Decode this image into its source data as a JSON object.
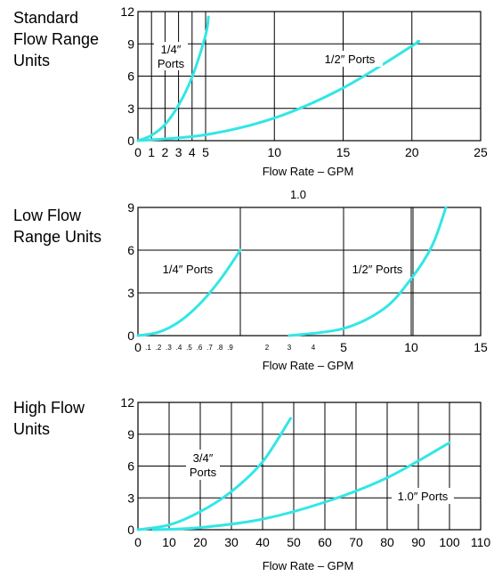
{
  "chart_data": [
    {
      "type": "line",
      "title": "Standard Flow Range Units",
      "title_lines": [
        "Standard",
        "Flow Range",
        "Units"
      ],
      "xlabel": "Flow Rate – GPM",
      "ylabel": "",
      "xlim": [
        0,
        25
      ],
      "ylim": [
        0,
        12
      ],
      "x_ticks": [
        0,
        1,
        2,
        3,
        4,
        5,
        10,
        15,
        20,
        25
      ],
      "y_ticks": [
        0,
        3,
        6,
        9,
        12
      ],
      "series": [
        {
          "name": "1/4″ Ports",
          "label_lines": [
            "1/4″",
            "Ports"
          ],
          "x": [
            0,
            1,
            2,
            3,
            4,
            5,
            5.2
          ],
          "y": [
            0,
            0.5,
            1.5,
            3.3,
            5.9,
            9.8,
            11.5
          ]
        },
        {
          "name": "1/2″ Ports",
          "label_lines": [
            "1/2″ Ports"
          ],
          "x": [
            0,
            5,
            10,
            15,
            20,
            20.4
          ],
          "y": [
            0,
            0.55,
            2.1,
            4.9,
            8.8,
            9.2
          ]
        }
      ],
      "grid": true
    },
    {
      "type": "line",
      "title": "Low Flow Range Units",
      "title_lines": [
        "Low Flow",
        "Range Units"
      ],
      "top_label": "1.0",
      "xlabel": "Flow Rate – GPM",
      "ylabel": "",
      "ylim": [
        0,
        9
      ],
      "y_ticks": [
        0,
        3,
        6,
        9
      ],
      "x_ticks_small": [
        ".1",
        ".2",
        ".3",
        ".4",
        ".5",
        ".6",
        ".7",
        ".8",
        ".9",
        "2",
        "3",
        "4"
      ],
      "x_ticks_large": [
        "0",
        "5",
        "10",
        "15"
      ],
      "series": [
        {
          "name": "1/4″ Ports",
          "label_lines": [
            "1/4″ Ports"
          ],
          "x": [
            0,
            0.2,
            0.4,
            0.6,
            0.8,
            1.0
          ],
          "y": [
            0,
            0.24,
            0.96,
            2.2,
            3.9,
            6.0
          ]
        },
        {
          "name": "1/2″ Ports",
          "label_lines": [
            "1/2″ Ports"
          ],
          "x": [
            3,
            5,
            8,
            10,
            11.5,
            12.5
          ],
          "y": [
            0,
            0.5,
            1.9,
            4.0,
            6.3,
            9.0
          ]
        }
      ],
      "grid": true
    },
    {
      "type": "line",
      "title": "High Flow Units",
      "title_lines": [
        "High Flow",
        "Units"
      ],
      "xlabel": "Flow Rate – GPM",
      "ylabel": "",
      "xlim": [
        0,
        110
      ],
      "ylim": [
        0,
        12
      ],
      "x_ticks": [
        0,
        10,
        20,
        30,
        40,
        50,
        60,
        70,
        80,
        90,
        100,
        110
      ],
      "y_ticks": [
        0,
        3,
        6,
        9,
        12
      ],
      "series": [
        {
          "name": "3/4″ Ports",
          "label_lines": [
            "3/4″",
            "Ports"
          ],
          "x": [
            0,
            10,
            20,
            30,
            40,
            49
          ],
          "y": [
            0,
            0.45,
            1.7,
            3.6,
            6.4,
            10.5
          ]
        },
        {
          "name": "1.0″ Ports",
          "label_lines": [
            "1.0″ Ports"
          ],
          "x": [
            5,
            20,
            40,
            60,
            80,
            100
          ],
          "y": [
            0,
            0.2,
            1.0,
            2.6,
            4.9,
            8.2
          ]
        }
      ],
      "grid": true
    }
  ]
}
